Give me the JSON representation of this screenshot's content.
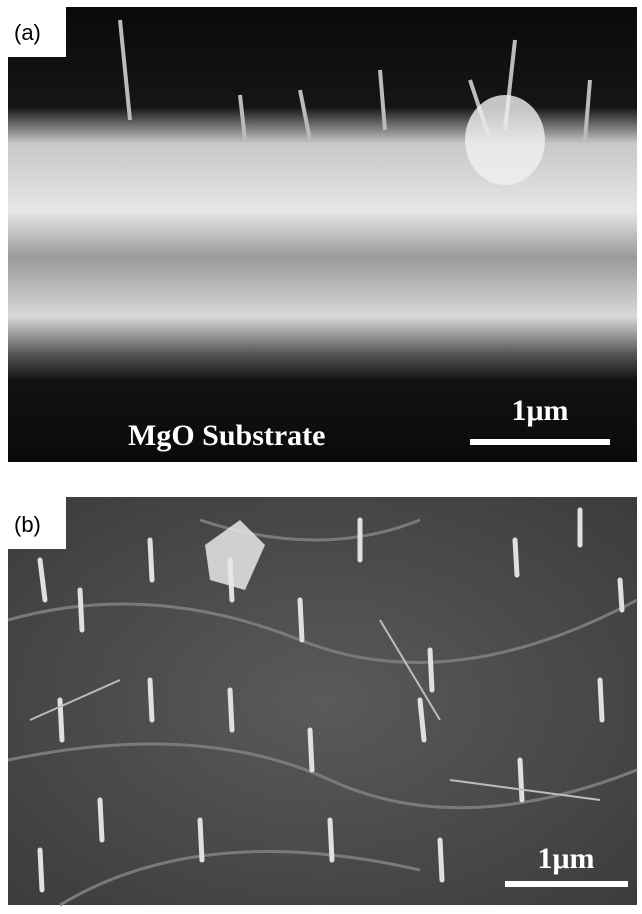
{
  "panels": [
    {
      "label": "(a)",
      "caption": "MgO Substrate",
      "scale": "1μm"
    },
    {
      "label": "(b)",
      "scale": "1μm"
    }
  ]
}
